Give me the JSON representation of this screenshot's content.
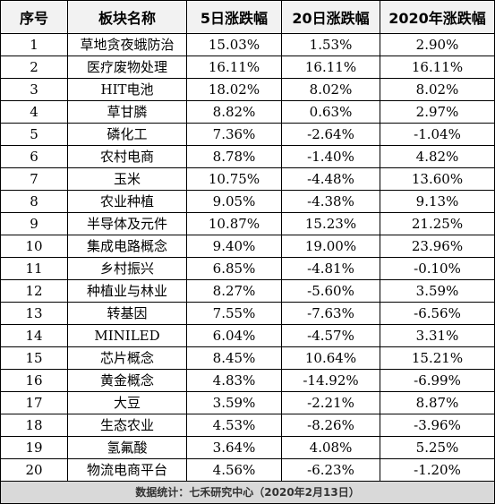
{
  "headers": [
    "序号",
    "板块名称",
    "5日涨跌幅",
    "20日涨跌幅",
    "2020年涨跌幅"
  ],
  "rows": [
    [
      "1",
      "草地贪夜蛾防治",
      "15.03%",
      "1.53%",
      "2.90%"
    ],
    [
      "2",
      "医疗废物处理",
      "16.11%",
      "16.11%",
      "16.11%"
    ],
    [
      "3",
      "HIT电池",
      "18.02%",
      "8.02%",
      "8.02%"
    ],
    [
      "4",
      "草甘膦",
      "8.82%",
      "0.63%",
      "2.97%"
    ],
    [
      "5",
      "磷化工",
      "7.36%",
      "-2.64%",
      "-1.04%"
    ],
    [
      "6",
      "农村电商",
      "8.78%",
      "-1.40%",
      "4.82%"
    ],
    [
      "7",
      "玉米",
      "10.75%",
      "-4.48%",
      "13.60%"
    ],
    [
      "8",
      "农业种植",
      "9.05%",
      "-4.38%",
      "9.13%"
    ],
    [
      "9",
      "半导体及元件",
      "10.87%",
      "15.23%",
      "21.25%"
    ],
    [
      "10",
      "集成电路概念",
      "9.40%",
      "19.00%",
      "23.96%"
    ],
    [
      "11",
      "乡村振兴",
      "6.85%",
      "-4.81%",
      "-0.10%"
    ],
    [
      "12",
      "种植业与林业",
      "8.27%",
      "-5.60%",
      "3.59%"
    ],
    [
      "13",
      "转基因",
      "7.55%",
      "-7.63%",
      "-6.56%"
    ],
    [
      "14",
      "MINILED",
      "6.04%",
      "-4.57%",
      "3.31%"
    ],
    [
      "15",
      "芯片概念",
      "8.45%",
      "10.64%",
      "15.21%"
    ],
    [
      "16",
      "黄金概念",
      "4.83%",
      "-14.92%",
      "-6.99%"
    ],
    [
      "17",
      "大豆",
      "3.59%",
      "-2.21%",
      "8.87%"
    ],
    [
      "18",
      "生态农业",
      "4.53%",
      "-8.26%",
      "-3.96%"
    ],
    [
      "19",
      "氢氟酸",
      "3.64%",
      "4.08%",
      "5.25%"
    ],
    [
      "20",
      "物流电商平台",
      "4.56%",
      "-6.23%",
      "-1.20%"
    ]
  ],
  "footer": "数据统计：七禾研究中心（2020年2月13日）"
}
